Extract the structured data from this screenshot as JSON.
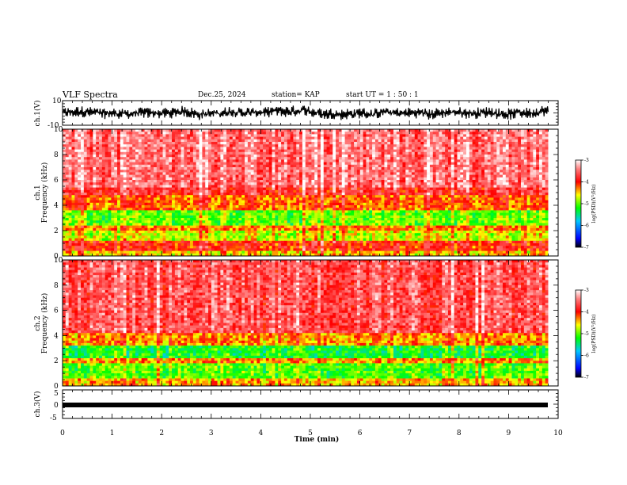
{
  "header": {
    "title": "VLF Spectra",
    "date": "Dec.25, 2024",
    "station": "station= KAP",
    "start_ut": "start  UT  =   1 : 50 : 1"
  },
  "chart_data": [
    {
      "type": "line",
      "name": "ch1-waveform",
      "ylabel": "ch.1(V)",
      "ylim": [
        -10,
        10
      ],
      "yticks": [
        "10",
        "-10"
      ],
      "xlim": [
        0,
        10
      ],
      "x_end": 9.8,
      "approx_level_v": [
        4,
        -4
      ]
    },
    {
      "type": "heatmap",
      "name": "ch1-spectrogram",
      "ylabel": "ch.1\nFrequency (kHz)",
      "ylim": [
        0,
        10
      ],
      "yticks": [
        "0",
        "2",
        "4",
        "6",
        "8",
        "10"
      ],
      "xlim": [
        0,
        10
      ],
      "x_end": 9.8,
      "bands_khz": [
        {
          "from": 0.0,
          "to": 0.5,
          "level": -4.5
        },
        {
          "from": 0.5,
          "to": 1.1,
          "level": -4.0
        },
        {
          "from": 1.1,
          "to": 2.0,
          "level": -4.7
        },
        {
          "from": 2.0,
          "to": 2.4,
          "level": -4.3
        },
        {
          "from": 2.4,
          "to": 3.6,
          "level": -5.0
        },
        {
          "from": 3.6,
          "to": 4.8,
          "level": -4.2
        },
        {
          "from": 4.8,
          "to": 5.5,
          "level": -3.8
        },
        {
          "from": 5.5,
          "to": 10.0,
          "level": -3.5
        }
      ],
      "colorbar": {
        "label": "log(PSD)(V²/Hz)",
        "range": [
          -7,
          -3
        ],
        "ticks": [
          "-3",
          "-4",
          "-5",
          "-6",
          "-7"
        ]
      }
    },
    {
      "type": "heatmap",
      "name": "ch2-spectrogram",
      "ylabel": "ch.2\nFrequency (kHz)",
      "ylim": [
        0,
        10
      ],
      "yticks": [
        "0",
        "2",
        "4",
        "6",
        "8",
        "10"
      ],
      "xlim": [
        0,
        10
      ],
      "x_end": 9.8,
      "bands_khz": [
        {
          "from": 0.0,
          "to": 0.6,
          "level": -4.4
        },
        {
          "from": 0.6,
          "to": 1.8,
          "level": -5.0
        },
        {
          "from": 1.8,
          "to": 2.2,
          "level": -4.3
        },
        {
          "from": 2.2,
          "to": 3.2,
          "level": -5.2
        },
        {
          "from": 3.2,
          "to": 4.2,
          "level": -4.3
        },
        {
          "from": 4.2,
          "to": 10.0,
          "level": -3.6
        }
      ],
      "colorbar": {
        "label": "log(PSD)(V²/Hz)",
        "range": [
          -7,
          -3
        ],
        "ticks": [
          "-3",
          "-4",
          "-5",
          "-6",
          "-7"
        ]
      }
    },
    {
      "type": "line",
      "name": "ch3-waveform",
      "ylabel": "ch.3(V)",
      "ylim": [
        -5,
        5
      ],
      "yticks": [
        "5",
        "0",
        "-5"
      ],
      "xlim": [
        0,
        10
      ],
      "x_end": 9.8,
      "approx_level_v": [
        -0.5,
        0.5
      ],
      "xlabel": "Time (min)",
      "xticks": [
        "0",
        "1",
        "2",
        "3",
        "4",
        "5",
        "6",
        "7",
        "8",
        "9",
        "10"
      ]
    }
  ]
}
